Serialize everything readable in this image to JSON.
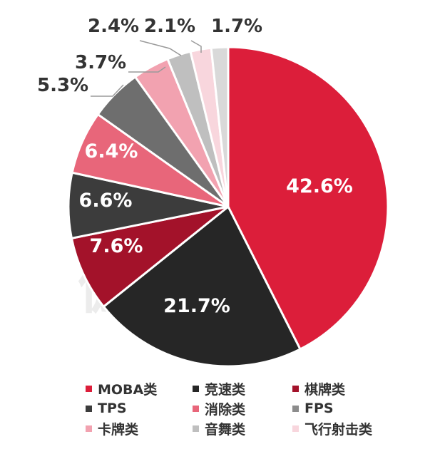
{
  "chart_data": {
    "type": "pie",
    "title": "",
    "start_angle_deg": 0,
    "direction": "clockwise",
    "legend_position": "bottom",
    "slices": [
      {
        "name": "MOBA类",
        "value": 42.6,
        "label": "42.6%",
        "color": "#dc1e3a",
        "label_color": "#ffffff"
      },
      {
        "name": "竞速类",
        "value": 21.7,
        "label": "21.7%",
        "color": "#262626",
        "label_color": "#ffffff"
      },
      {
        "name": "棋牌类",
        "value": 7.6,
        "label": "7.6%",
        "color": "#a3122a",
        "label_color": "#ffffff"
      },
      {
        "name": "TPS",
        "value": 6.6,
        "label": "6.6%",
        "color": "#3c3c3c",
        "label_color": "#ffffff"
      },
      {
        "name": "消除类",
        "value": 6.4,
        "label": "6.4%",
        "color": "#e8667a",
        "label_color": "#ffffff"
      },
      {
        "name": "FPS",
        "value": 5.3,
        "label": "5.3%",
        "color": "#6e6e6e",
        "label_color": "#333333"
      },
      {
        "name": "卡牌类",
        "value": 3.7,
        "label": "3.7%",
        "color": "#f2a2b0",
        "label_color": "#333333"
      },
      {
        "name": "音舞类",
        "value": 2.4,
        "label": "2.4%",
        "color": "#bfbfbf",
        "label_color": "#333333"
      },
      {
        "name": "飞行射击类",
        "value": 2.1,
        "label": "2.1%",
        "color": "#f8d6dd",
        "label_color": "#333333"
      },
      {
        "name": "",
        "value": 1.7,
        "label": "1.7%",
        "color": "#d9d9d9",
        "label_color": "#333333"
      }
    ],
    "legend": [
      {
        "name": "MOBA类",
        "color": "#dc1e3a"
      },
      {
        "name": "竞速类",
        "color": "#262626"
      },
      {
        "name": "棋牌类",
        "color": "#a3122a"
      },
      {
        "name": "TPS",
        "color": "#3c3c3c"
      },
      {
        "name": "消除类",
        "color": "#e8667a"
      },
      {
        "name": "FPS",
        "color": "#8c8c8c"
      },
      {
        "name": "卡牌类",
        "color": "#f2a2b0"
      },
      {
        "name": "音舞类",
        "color": "#bfbfbf"
      },
      {
        "name": "飞行射击类",
        "color": "#f8d6dd"
      }
    ]
  },
  "watermark": {
    "line1": "游戏工委",
    "line2": "伽马数据"
  }
}
